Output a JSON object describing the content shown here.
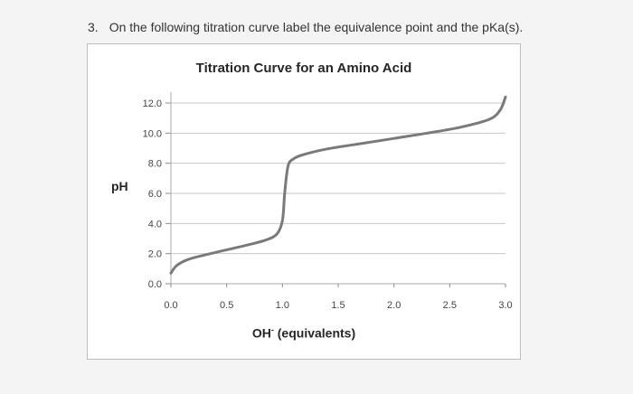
{
  "question": {
    "number": "3.",
    "text": "On the following titration curve label the equivalence point and the pKa(s)."
  },
  "chart_data": {
    "type": "line",
    "title": "Titration Curve for an Amino Acid",
    "ylabel": "pH",
    "xlabel_main": "OH",
    "xlabel_sup": "-",
    "xlabel_rest": " (equivalents)",
    "xlim": [
      0.0,
      3.0
    ],
    "ylim": [
      0.0,
      12.0
    ],
    "x_ticks": [
      "0.0",
      "0.5",
      "1.0",
      "1.5",
      "2.0",
      "2.5",
      "3.0"
    ],
    "y_ticks": [
      "0.0",
      "2.0",
      "4.0",
      "6.0",
      "8.0",
      "10.0",
      "12.0"
    ],
    "grid": "horizontal",
    "series": [
      {
        "color": "#7a7a7a",
        "x": [
          0.0,
          0.05,
          0.15,
          0.3,
          0.5,
          0.7,
          0.85,
          0.95,
          1.0,
          1.02,
          1.05,
          1.1,
          1.2,
          1.4,
          1.7,
          2.0,
          2.3,
          2.6,
          2.85,
          2.95,
          3.0
        ],
        "y": [
          0.7,
          1.2,
          1.6,
          1.9,
          2.25,
          2.6,
          2.9,
          3.3,
          4.2,
          6.0,
          7.8,
          8.3,
          8.6,
          8.95,
          9.3,
          9.65,
          10.0,
          10.4,
          10.9,
          11.5,
          12.4
        ]
      }
    ]
  }
}
